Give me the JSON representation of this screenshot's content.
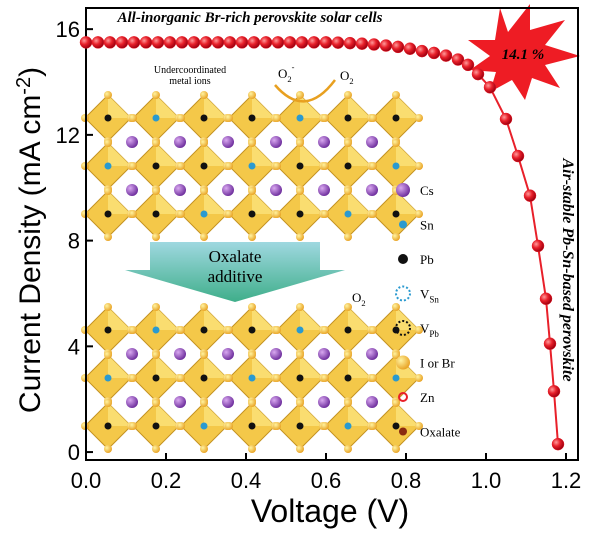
{
  "chart_data": {
    "type": "line",
    "title": "All-inorganic Br-rich perovskite solar cells",
    "x_label": "Voltage (V)",
    "y_label": {
      "text": "Current Density (mA cm",
      "sup": "-2",
      "end": ")"
    },
    "x": [
      0,
      0.03,
      0.06,
      0.09,
      0.12,
      0.15,
      0.18,
      0.21,
      0.24,
      0.27,
      0.3,
      0.33,
      0.36,
      0.39,
      0.42,
      0.45,
      0.48,
      0.51,
      0.54,
      0.57,
      0.6,
      0.63,
      0.66,
      0.69,
      0.72,
      0.75,
      0.78,
      0.81,
      0.84,
      0.87,
      0.9,
      0.93,
      0.955,
      0.98,
      1.01,
      1.05,
      1.08,
      1.11,
      1.13,
      1.15,
      1.16,
      1.17,
      1.18
    ],
    "values": [
      15.5,
      15.5,
      15.5,
      15.5,
      15.5,
      15.5,
      15.5,
      15.5,
      15.5,
      15.5,
      15.5,
      15.5,
      15.5,
      15.5,
      15.5,
      15.5,
      15.5,
      15.5,
      15.5,
      15.5,
      15.5,
      15.49,
      15.47,
      15.45,
      15.42,
      15.38,
      15.33,
      15.26,
      15.17,
      15.1,
      15.0,
      14.85,
      14.65,
      14.3,
      13.8,
      12.6,
      11.2,
      9.7,
      7.8,
      5.8,
      4.1,
      2.3,
      0.3
    ],
    "color": "#e8202a",
    "xlim": [
      0,
      1.23
    ],
    "ylim": [
      -0.3,
      16.8
    ],
    "xticks": [
      {
        "value": 0,
        "label": "0.0"
      },
      0.2,
      0.4,
      0.6,
      0.8,
      {
        "value": 1,
        "label": "1.0"
      },
      1.2
    ],
    "yticks": [
      0,
      4,
      8,
      12,
      16
    ],
    "annotations": {
      "efficiency": "14.1 %",
      "side": "Air-stable Pb-Sn-based perovskite",
      "undercoordinated": [
        "Undercoordinated",
        "metal ions"
      ],
      "o2_ion": {
        "main": "O",
        "sub": "2",
        "sup": "-"
      },
      "o2": {
        "main": "O",
        "sub": "2"
      },
      "o2_lower": {
        "main": "O",
        "sub": "2"
      },
      "additive": [
        "Oxalate",
        "additive"
      ]
    },
    "inset_legend": [
      {
        "main": "Cs"
      },
      {
        "main": "Sn"
      },
      {
        "main": "Pb"
      },
      {
        "main": "V",
        "sub": "Sn"
      },
      {
        "main": "V",
        "sub": "Pb"
      },
      {
        "main": "I or Br"
      },
      {
        "main": "Zn"
      },
      {
        "main": "Oxalate"
      }
    ]
  }
}
